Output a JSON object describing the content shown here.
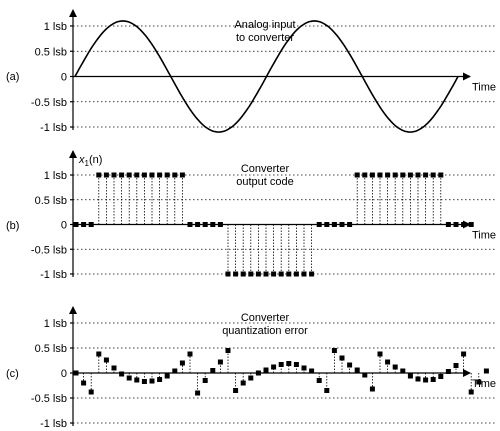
{
  "chart_data": [
    {
      "panel": "(a)",
      "type": "line",
      "annotation": [
        "Analog input",
        "to converter"
      ],
      "xlabel": "Time",
      "ylabel": "",
      "yticks": [
        {
          "value": 1,
          "label": "1 lsb"
        },
        {
          "value": 0.5,
          "label": "0.5 lsb"
        },
        {
          "value": 0,
          "label": "0"
        },
        {
          "value": -0.5,
          "label": "-0.5 lsb"
        },
        {
          "value": -1,
          "label": "-1 lsb"
        }
      ],
      "ylim": [
        -1.25,
        1.25
      ],
      "grid": true,
      "series": [
        {
          "function": "sine",
          "amplitude": 1.1,
          "cycles": 2,
          "x": [
            0,
            1
          ]
        }
      ]
    },
    {
      "panel": "(b)",
      "type": "scatter",
      "annotation": [
        "Converter",
        "output code"
      ],
      "ylabel": "x1(n)",
      "xlabel": "Time",
      "yticks": [
        {
          "value": 1,
          "label": "1 lsb"
        },
        {
          "value": 0.5,
          "label": "0.5 lsb"
        },
        {
          "value": 0,
          "label": "0"
        },
        {
          "value": -0.5,
          "label": "-0.5 lsb"
        },
        {
          "value": -1,
          "label": "-1 lsb"
        }
      ],
      "ylim": [
        -1.25,
        1.35
      ],
      "grid": true,
      "stems": true,
      "values": [
        0,
        0,
        0,
        1,
        1,
        1,
        1,
        1,
        1,
        1,
        1,
        1,
        1,
        1,
        1,
        0,
        0,
        0,
        0,
        0,
        -1,
        -1,
        -1,
        -1,
        -1,
        -1,
        -1,
        -1,
        -1,
        -1,
        -1,
        -1,
        0,
        0,
        0,
        0,
        0,
        1,
        1,
        1,
        1,
        1,
        1,
        1,
        1,
        1,
        1,
        1,
        1,
        0,
        0,
        0,
        0
      ]
    },
    {
      "panel": "(c)",
      "type": "scatter",
      "annotation": [
        "Converter",
        "quantization error"
      ],
      "xlabel": "Time",
      "yticks": [
        {
          "value": 1,
          "label": "1 lsb"
        },
        {
          "value": 0.5,
          "label": "0.5 lsb"
        },
        {
          "value": 0,
          "label": "0"
        },
        {
          "value": -0.5,
          "label": "-0.5 lsb"
        },
        {
          "value": -1,
          "label": "-1 lsb"
        }
      ],
      "ylim": [
        -1.25,
        1.25
      ],
      "grid": true,
      "stems": true,
      "values": [
        0,
        -0.2,
        -0.38,
        0.38,
        0.26,
        0.1,
        -0.02,
        -0.1,
        -0.14,
        -0.17,
        -0.16,
        -0.13,
        -0.06,
        0.04,
        0.2,
        0.38,
        -0.4,
        -0.15,
        0.05,
        0.22,
        0.45,
        -0.35,
        -0.2,
        -0.1,
        0,
        0.06,
        0.12,
        0.17,
        0.19,
        0.17,
        0.1,
        0.04,
        -0.15,
        -0.35,
        0.45,
        0.3,
        0.16,
        0.06,
        -0.04,
        -0.32,
        0.38,
        0.22,
        0.12,
        0.04,
        -0.06,
        -0.12,
        -0.14,
        -0.13,
        -0.07,
        0.03,
        0.15,
        0.38,
        -0.38,
        -0.18,
        0.04
      ]
    }
  ]
}
